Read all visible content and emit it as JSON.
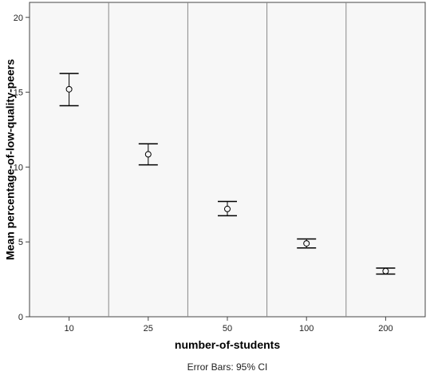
{
  "chart_data": {
    "type": "scatter",
    "subtype": "error-bar",
    "title": "",
    "xlabel": "number-of-students",
    "ylabel": "Mean percentage-of-low-quality-peers",
    "footnote": "Error Bars: 95% CI",
    "categories": [
      "10",
      "25",
      "50",
      "100",
      "200"
    ],
    "values": [
      15.2,
      10.85,
      7.2,
      4.9,
      3.05
    ],
    "ci_lower": [
      14.1,
      10.15,
      6.75,
      4.6,
      2.85
    ],
    "ci_upper": [
      16.25,
      11.55,
      7.7,
      5.2,
      3.25
    ],
    "ylim": [
      0,
      21
    ],
    "yticks": [
      0,
      5,
      10,
      15,
      20
    ],
    "grid": "vertical separators between categories",
    "plot_background": "#f7f7f7",
    "marker": "open-circle"
  }
}
